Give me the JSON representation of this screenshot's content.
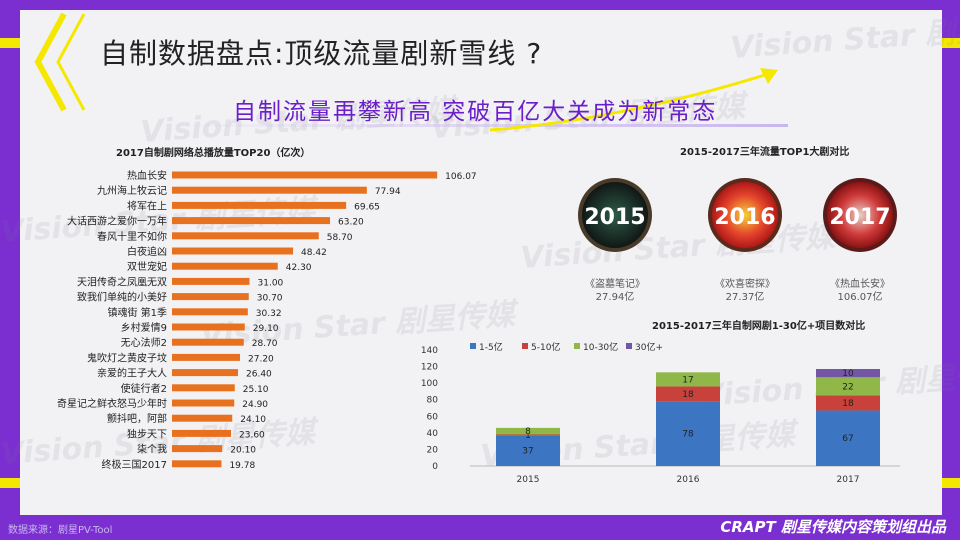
{
  "header": {
    "title": "自制数据盘点:顶级流量剧新雪线 ?",
    "subtitle": "自制流量再攀新高 突破百亿大关成为新常态"
  },
  "watermark": "Vision Star 剧星传媒",
  "footer": {
    "source": "数据来源：剧星PV-Tool",
    "brand": "CRAPT 剧星传媒内容策划组出品"
  },
  "colors": {
    "accent": "#7b2fd1",
    "stripe": "#f5e800",
    "bar": "#e8711f",
    "s1": "#3c76c2",
    "s2": "#c8413b",
    "s3": "#8fb849",
    "s4": "#7357a4"
  },
  "posters": [
    {
      "year": "2015",
      "name": "《盗墓笔记》",
      "value": "27.94亿"
    },
    {
      "year": "2016",
      "name": "《欢喜密探》",
      "value": "27.37亿"
    },
    {
      "year": "2017",
      "name": "《热血长安》",
      "value": "106.07亿"
    }
  ],
  "chart_data": [
    {
      "type": "bar",
      "orientation": "horizontal",
      "title": "2017自制剧网络总播放量TOP20（亿次）",
      "categories": [
        "热血长安",
        "九州海上牧云记",
        "将军在上",
        "大话西游之爱你一万年",
        "春风十里不如你",
        "白夜追凶",
        "双世宠妃",
        "天泪传奇之凤凰无双",
        "致我们单纯的小美好",
        "镇魂街 第1季",
        "乡村爱情9",
        "无心法师2",
        "鬼吹灯之黄皮子坟",
        "亲爱的王子大人",
        "使徒行者2",
        "奇星记之鲜衣怒马少年时",
        "颤抖吧，阿部",
        "独步天下",
        "柒个我",
        "终极三国2017"
      ],
      "values": [
        106.07,
        77.94,
        69.65,
        63.2,
        58.7,
        48.42,
        42.3,
        31.0,
        30.7,
        30.32,
        29.1,
        28.7,
        27.2,
        26.4,
        25.1,
        24.9,
        24.1,
        23.6,
        20.1,
        19.78
      ],
      "labels": [
        "106.07",
        "77.94",
        "69.65",
        "63.20",
        "58.70",
        "48.42",
        "42.30",
        "31.00",
        "30.70",
        "30.32",
        "29.10",
        "28.70",
        "27.20",
        "26.40",
        "25.10",
        "24.90",
        "24.10",
        "23.60",
        "20.10",
        "19.78"
      ],
      "xlim": [
        0,
        110
      ]
    },
    {
      "type": "bar",
      "stacked": true,
      "title": "2015-2017三年自制网剧1-30亿+项目数对比",
      "categories": [
        "2015",
        "2016",
        "2017"
      ],
      "series": [
        {
          "name": "1-5亿",
          "values": [
            37,
            78,
            67
          ],
          "labels": [
            "37",
            "78",
            "67"
          ]
        },
        {
          "name": "5-10亿",
          "values": [
            1,
            18,
            18
          ],
          "labels": [
            "1",
            "18",
            "18"
          ]
        },
        {
          "name": "10-30亿",
          "values": [
            8,
            17,
            22
          ],
          "labels": [
            "8",
            "17",
            "22"
          ]
        },
        {
          "name": "30亿+",
          "values": [
            0,
            0,
            10
          ],
          "labels": [
            "",
            "",
            "10"
          ]
        }
      ],
      "yticks": [
        "0",
        "20",
        "40",
        "60",
        "80",
        "100",
        "120",
        "140"
      ],
      "ylim": [
        0,
        140
      ],
      "legend": "top"
    },
    {
      "type": "image-panel",
      "title": "2015-2017三年流量TOP1大剧对比"
    }
  ]
}
